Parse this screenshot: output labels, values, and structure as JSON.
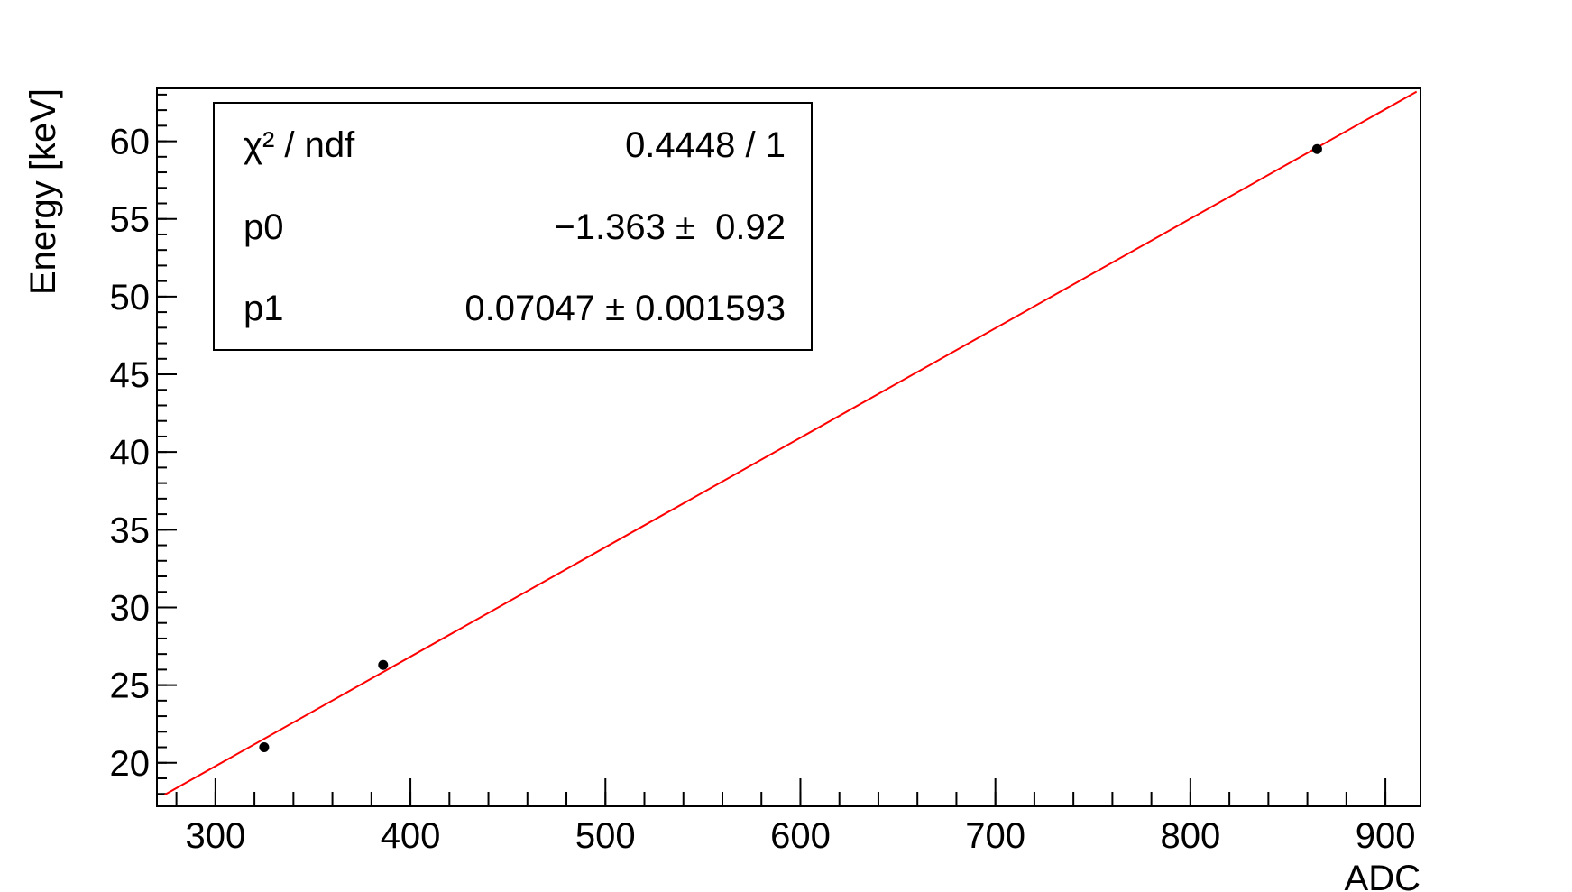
{
  "chart_data": {
    "type": "scatter",
    "x_label": "ADC",
    "y_label": "Energy [keV]",
    "series": [
      {
        "color": "#000000",
        "x": [
          325,
          386,
          865
        ],
        "values": [
          21.0,
          26.3,
          59.5
        ]
      }
    ],
    "fit": {
      "color": "#ff0000",
      "x": [
        274,
        916
      ],
      "values": [
        17.95,
        63.19
      ]
    },
    "xlim": [
      270,
      918
    ],
    "ylim": [
      17.2,
      63.4
    ],
    "xticks": [
      300,
      400,
      500,
      600,
      700,
      800,
      900
    ],
    "yticks": [
      20,
      25,
      30,
      35,
      40,
      45,
      50,
      55,
      60
    ],
    "x_minor_step": 20,
    "y_minor_step": 1,
    "stats": [
      {
        "label": "χ² / ndf",
        "value": "0.4448 / 1"
      },
      {
        "label": "p0",
        "value": "−1.363 ±  0.92"
      },
      {
        "label": "p1",
        "value": "0.07047 ± 0.001593"
      }
    ]
  }
}
